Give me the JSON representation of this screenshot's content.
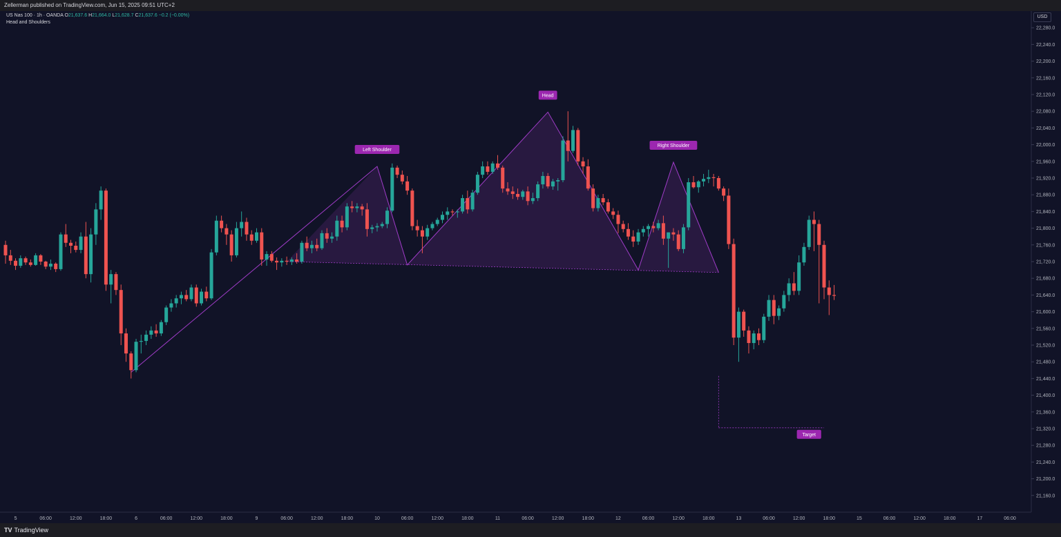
{
  "header": {
    "published": "Zellerman published on TradingView.com, Jun 15, 2025 09:51 UTC+2"
  },
  "legend": {
    "symbol": "US Nas 100 · 1h · OANDA",
    "o_label": "O",
    "o": "21,637.6",
    "h_label": "H",
    "h": "21,664.0",
    "l_label": "L",
    "l": "21,628.7",
    "c_label": "C",
    "c": "21,637.6",
    "change": "−0.2 (−0.00%)",
    "indicator": "Head and Shoulders"
  },
  "currency": "USD",
  "footer": {
    "brand": "TradingView",
    "logo_text": "TV"
  },
  "colors": {
    "background": "#111327",
    "up": "#26a69a",
    "down": "#ef5350",
    "pattern": "#a03cc8",
    "label_bg": "#9c27b0",
    "axis_text": "#b2b5be"
  },
  "chart_data": {
    "type": "candlestick",
    "title": "",
    "ylim": [
      21120,
      22320
    ],
    "y_ticks": [
      "21,160.0",
      "21,200.0",
      "21,240.0",
      "21,280.0",
      "21,320.0",
      "21,360.0",
      "21,400.0",
      "21,440.0",
      "21,480.0",
      "21,520.0",
      "21,560.0",
      "21,600.0",
      "21,640.0",
      "21,680.0",
      "21,720.0",
      "21,760.0",
      "21,800.0",
      "21,840.0",
      "21,880.0",
      "21,920.0",
      "21,960.0",
      "22,000.0",
      "22,040.0",
      "22,080.0",
      "22,120.0",
      "22,160.0",
      "22,200.0",
      "22,240.0",
      "22,280.0"
    ],
    "x_ticks": [
      {
        "label": "5",
        "i": 2
      },
      {
        "label": "06:00",
        "i": 8
      },
      {
        "label": "12:00",
        "i": 14
      },
      {
        "label": "18:00",
        "i": 20
      },
      {
        "label": "6",
        "i": 26
      },
      {
        "label": "06:00",
        "i": 32
      },
      {
        "label": "12:00",
        "i": 38
      },
      {
        "label": "18:00",
        "i": 44
      },
      {
        "label": "9",
        "i": 50
      },
      {
        "label": "06:00",
        "i": 56
      },
      {
        "label": "12:00",
        "i": 62
      },
      {
        "label": "18:00",
        "i": 68
      },
      {
        "label": "10",
        "i": 74
      },
      {
        "label": "06:00",
        "i": 80
      },
      {
        "label": "12:00",
        "i": 86
      },
      {
        "label": "18:00",
        "i": 92
      },
      {
        "label": "11",
        "i": 98
      },
      {
        "label": "06:00",
        "i": 104
      },
      {
        "label": "12:00",
        "i": 110
      },
      {
        "label": "18:00",
        "i": 116
      },
      {
        "label": "12",
        "i": 122
      },
      {
        "label": "06:00",
        "i": 128
      },
      {
        "label": "12:00",
        "i": 134
      },
      {
        "label": "18:00",
        "i": 140
      },
      {
        "label": "13",
        "i": 146
      },
      {
        "label": "06:00",
        "i": 152
      },
      {
        "label": "12:00",
        "i": 158
      },
      {
        "label": "18:00",
        "i": 164
      },
      {
        "label": "15",
        "i": 170
      },
      {
        "label": "06:00",
        "i": 176
      },
      {
        "label": "12:00",
        "i": 182
      },
      {
        "label": "18:00",
        "i": 188
      },
      {
        "label": "17",
        "i": 194
      },
      {
        "label": "06:00",
        "i": 200
      }
    ],
    "candles": [
      [
        21760,
        21770,
        21715,
        21735
      ],
      [
        21735,
        21748,
        21712,
        21722
      ],
      [
        21722,
        21728,
        21700,
        21710
      ],
      [
        21710,
        21735,
        21705,
        21728
      ],
      [
        21728,
        21732,
        21712,
        21718
      ],
      [
        21718,
        21725,
        21708,
        21712
      ],
      [
        21712,
        21740,
        21710,
        21735
      ],
      [
        21735,
        21738,
        21712,
        21720
      ],
      [
        21720,
        21722,
        21702,
        21708
      ],
      [
        21708,
        21725,
        21700,
        21715
      ],
      [
        21715,
        21718,
        21695,
        21702
      ],
      [
        21702,
        21790,
        21698,
        21785
      ],
      [
        21785,
        21810,
        21755,
        21765
      ],
      [
        21765,
        21772,
        21740,
        21758
      ],
      [
        21758,
        21768,
        21742,
        21748
      ],
      [
        21748,
        21790,
        21740,
        21780
      ],
      [
        21780,
        21815,
        21680,
        21690
      ],
      [
        21690,
        21800,
        21670,
        21785
      ],
      [
        21785,
        21860,
        21760,
        21845
      ],
      [
        21845,
        21900,
        21820,
        21890
      ],
      [
        21890,
        21895,
        21650,
        21665
      ],
      [
        21665,
        21700,
        21620,
        21690
      ],
      [
        21690,
        21695,
        21640,
        21652
      ],
      [
        21652,
        21665,
        21520,
        21548
      ],
      [
        21548,
        21560,
        21480,
        21500
      ],
      [
        21500,
        21505,
        21440,
        21460
      ],
      [
        21460,
        21535,
        21455,
        21528
      ],
      [
        21528,
        21545,
        21500,
        21530
      ],
      [
        21530,
        21555,
        21520,
        21545
      ],
      [
        21545,
        21565,
        21535,
        21555
      ],
      [
        21555,
        21570,
        21540,
        21548
      ],
      [
        21548,
        21580,
        21542,
        21575
      ],
      [
        21575,
        21615,
        21568,
        21610
      ],
      [
        21610,
        21630,
        21600,
        21620
      ],
      [
        21620,
        21640,
        21610,
        21632
      ],
      [
        21632,
        21648,
        21618,
        21640
      ],
      [
        21640,
        21652,
        21625,
        21630
      ],
      [
        21630,
        21665,
        21625,
        21658
      ],
      [
        21658,
        21665,
        21612,
        21620
      ],
      [
        21620,
        21655,
        21615,
        21648
      ],
      [
        21648,
        21660,
        21625,
        21632
      ],
      [
        21632,
        21750,
        21628,
        21742
      ],
      [
        21742,
        21830,
        21735,
        21818
      ],
      [
        21818,
        21830,
        21790,
        21800
      ],
      [
        21800,
        21810,
        21760,
        21785
      ],
      [
        21785,
        21795,
        21720,
        21735
      ],
      [
        21735,
        21815,
        21730,
        21800
      ],
      [
        21800,
        21840,
        21780,
        21815
      ],
      [
        21815,
        21825,
        21770,
        21785
      ],
      [
        21785,
        21795,
        21760,
        21770
      ],
      [
        21770,
        21800,
        21765,
        21790
      ],
      [
        21790,
        21800,
        21710,
        21725
      ],
      [
        21725,
        21745,
        21710,
        21738
      ],
      [
        21738,
        21745,
        21718,
        21722
      ],
      [
        21722,
        21730,
        21700,
        21718
      ],
      [
        21718,
        21728,
        21708,
        21722
      ],
      [
        21722,
        21732,
        21712,
        21720
      ],
      [
        21720,
        21730,
        21712,
        21725
      ],
      [
        21725,
        21740,
        21715,
        21720
      ],
      [
        21720,
        21770,
        21715,
        21765
      ],
      [
        21765,
        21780,
        21745,
        21752
      ],
      [
        21752,
        21770,
        21740,
        21760
      ],
      [
        21760,
        21775,
        21745,
        21752
      ],
      [
        21752,
        21795,
        21748,
        21788
      ],
      [
        21788,
        21800,
        21765,
        21775
      ],
      [
        21775,
        21790,
        21765,
        21780
      ],
      [
        21780,
        21830,
        21770,
        21818
      ],
      [
        21818,
        21830,
        21790,
        21802
      ],
      [
        21802,
        21860,
        21795,
        21852
      ],
      [
        21852,
        21865,
        21838,
        21848
      ],
      [
        21848,
        21860,
        21838,
        21852
      ],
      [
        21852,
        21858,
        21830,
        21845
      ],
      [
        21845,
        21860,
        21780,
        21798
      ],
      [
        21798,
        21808,
        21788,
        21802
      ],
      [
        21802,
        21812,
        21792,
        21805
      ],
      [
        21805,
        21815,
        21800,
        21810
      ],
      [
        21810,
        21850,
        21800,
        21842
      ],
      [
        21842,
        21955,
        21838,
        21945
      ],
      [
        21945,
        21950,
        21920,
        21928
      ],
      [
        21928,
        21938,
        21905,
        21912
      ],
      [
        21912,
        21925,
        21880,
        21890
      ],
      [
        21890,
        21895,
        21795,
        21805
      ],
      [
        21805,
        21820,
        21780,
        21795
      ],
      [
        21795,
        21805,
        21740,
        21780
      ],
      [
        21780,
        21808,
        21772,
        21800
      ],
      [
        21800,
        21815,
        21795,
        21810
      ],
      [
        21810,
        21825,
        21805,
        21820
      ],
      [
        21820,
        21840,
        21812,
        21832
      ],
      [
        21832,
        21850,
        21820,
        21840
      ],
      [
        21840,
        21845,
        21830,
        21838
      ],
      [
        21838,
        21845,
        21825,
        21840
      ],
      [
        21840,
        21880,
        21835,
        21872
      ],
      [
        21872,
        21890,
        21835,
        21845
      ],
      [
        21845,
        21892,
        21840,
        21885
      ],
      [
        21885,
        21935,
        21880,
        21928
      ],
      [
        21928,
        21960,
        21920,
        21948
      ],
      [
        21948,
        21960,
        21928,
        21935
      ],
      [
        21935,
        21960,
        21930,
        21955
      ],
      [
        21955,
        21975,
        21940,
        21945
      ],
      [
        21945,
        21950,
        21885,
        21895
      ],
      [
        21895,
        21910,
        21880,
        21888
      ],
      [
        21888,
        21900,
        21870,
        21882
      ],
      [
        21882,
        21895,
        21868,
        21875
      ],
      [
        21875,
        21892,
        21868,
        21888
      ],
      [
        21888,
        21900,
        21855,
        21865
      ],
      [
        21865,
        21885,
        21858,
        21872
      ],
      [
        21872,
        21912,
        21865,
        21905
      ],
      [
        21905,
        21935,
        21895,
        21925
      ],
      [
        21925,
        21932,
        21895,
        21900
      ],
      [
        21900,
        21918,
        21892,
        21912
      ],
      [
        21912,
        21920,
        21890,
        21915
      ],
      [
        21915,
        22020,
        21910,
        22010
      ],
      [
        22010,
        22080,
        21960,
        21985
      ],
      [
        21985,
        22045,
        21980,
        22035
      ],
      [
        22035,
        22040,
        21950,
        21960
      ],
      [
        21960,
        21970,
        21930,
        21948
      ],
      [
        21948,
        21965,
        21890,
        21895
      ],
      [
        21895,
        21905,
        21840,
        21848
      ],
      [
        21848,
        21880,
        21840,
        21872
      ],
      [
        21872,
        21882,
        21855,
        21862
      ],
      [
        21862,
        21870,
        21835,
        21840
      ],
      [
        21840,
        21848,
        21822,
        21832
      ],
      [
        21832,
        21842,
        21788,
        21810
      ],
      [
        21810,
        21818,
        21790,
        21798
      ],
      [
        21798,
        21812,
        21772,
        21780
      ],
      [
        21780,
        21795,
        21755,
        21768
      ],
      [
        21768,
        21798,
        21760,
        21790
      ],
      [
        21790,
        21805,
        21780,
        21798
      ],
      [
        21798,
        21810,
        21780,
        21805
      ],
      [
        21805,
        21815,
        21790,
        21800
      ],
      [
        21800,
        21820,
        21795,
        21812
      ],
      [
        21812,
        21830,
        21760,
        21775
      ],
      [
        21775,
        21790,
        21705,
        21790
      ],
      [
        21790,
        21800,
        21770,
        21785
      ],
      [
        21785,
        21795,
        21745,
        21750
      ],
      [
        21750,
        21810,
        21740,
        21802
      ],
      [
        21802,
        21920,
        21795,
        21910
      ],
      [
        21910,
        21925,
        21895,
        21898
      ],
      [
        21898,
        21915,
        21885,
        21912
      ],
      [
        21912,
        21930,
        21900,
        21918
      ],
      [
        21918,
        21940,
        21908,
        21922
      ],
      [
        21922,
        21930,
        21900,
        21920
      ],
      [
        21920,
        21925,
        21890,
        21895
      ],
      [
        21895,
        21900,
        21865,
        21878
      ],
      [
        21878,
        21895,
        21750,
        21762
      ],
      [
        21762,
        21775,
        21520,
        21538
      ],
      [
        21538,
        21610,
        21480,
        21600
      ],
      [
        21600,
        21605,
        21540,
        21555
      ],
      [
        21555,
        21565,
        21500,
        21525
      ],
      [
        21525,
        21555,
        21510,
        21548
      ],
      [
        21548,
        21560,
        21520,
        21532
      ],
      [
        21532,
        21595,
        21525,
        21588
      ],
      [
        21588,
        21640,
        21578,
        21628
      ],
      [
        21628,
        21640,
        21570,
        21590
      ],
      [
        21590,
        21615,
        21580,
        21608
      ],
      [
        21608,
        21650,
        21600,
        21640
      ],
      [
        21640,
        21680,
        21625,
        21668
      ],
      [
        21668,
        21695,
        21640,
        21650
      ],
      [
        21650,
        21735,
        21640,
        21718
      ],
      [
        21718,
        21765,
        21710,
        21755
      ],
      [
        21755,
        21830,
        21748,
        21820
      ],
      [
        21820,
        21840,
        21745,
        21810
      ],
      [
        21810,
        21820,
        21620,
        21760
      ],
      [
        21760,
        21770,
        21630,
        21658
      ],
      [
        21658,
        21675,
        21592,
        21640
      ],
      [
        21640,
        21664,
        21628,
        21638
      ]
    ],
    "pattern": {
      "name": "Head and Shoulders",
      "points": [
        [
          25,
          21455
        ],
        [
          74,
          21948
        ],
        [
          80,
          21712
        ],
        [
          108,
          22078
        ],
        [
          126,
          21700
        ],
        [
          133,
          21958
        ],
        [
          142,
          21694
        ]
      ],
      "labels": [
        {
          "text": "Left Shoulder",
          "i": 74,
          "price": 21948
        },
        {
          "text": "Head",
          "i": 108,
          "price": 22078
        },
        {
          "text": "Right Shoulder",
          "i": 133,
          "price": 21958
        },
        {
          "text": "Target",
          "i": 160,
          "price": 21322
        }
      ],
      "neckline": [
        [
          56,
          21720
        ],
        [
          142,
          21694
        ]
      ],
      "target": {
        "i_start": 142,
        "i_end": 163,
        "price": 21322
      }
    }
  }
}
